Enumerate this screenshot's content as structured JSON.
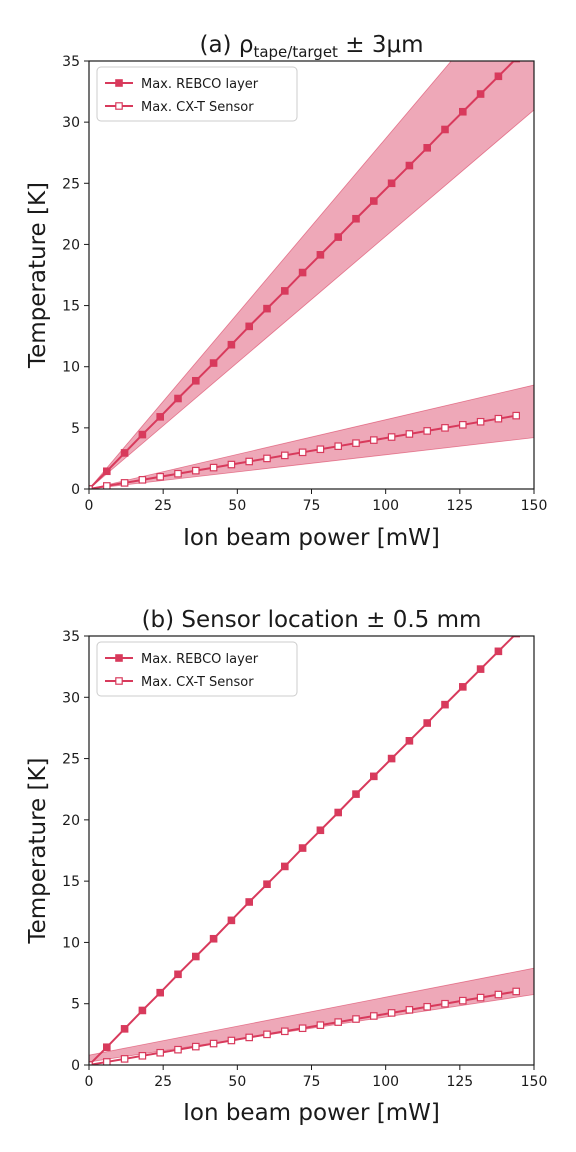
{
  "colors": {
    "series": "#d83a5c",
    "band": "#e0607e",
    "band_opacity": 0.55,
    "axis": "#1a1a1a",
    "background": "#ffffff"
  },
  "chart_data": [
    {
      "type": "line",
      "title_prefix": "(a) ",
      "title_rho": "ρ",
      "title_sub": "tape/target",
      "title_suffix": " ± 3μm",
      "xlabel": "Ion beam power [mW]",
      "ylabel": "Temperature [K]",
      "xlim": [
        0,
        150
      ],
      "ylim": [
        0,
        35
      ],
      "xticks": [
        0,
        25,
        50,
        75,
        100,
        125,
        150
      ],
      "yticks": [
        0,
        5,
        10,
        15,
        20,
        25,
        30,
        35
      ],
      "grid": false,
      "legend_position": "top-left",
      "series": [
        {
          "name": "Max. REBCO layer",
          "marker": "filled-square",
          "x": [
            0,
            6,
            12,
            18,
            24,
            30,
            36,
            42,
            48,
            54,
            60,
            66,
            72,
            78,
            84,
            90,
            96,
            102,
            108,
            114,
            120,
            126,
            132,
            138,
            144
          ],
          "y": [
            0.0,
            1.45,
            2.95,
            4.45,
            5.9,
            7.4,
            8.85,
            10.3,
            11.8,
            13.3,
            14.75,
            16.2,
            17.7,
            19.15,
            20.6,
            22.1,
            23.55,
            25.0,
            26.45,
            27.9,
            29.4,
            30.85,
            32.3,
            33.75,
            35.2
          ],
          "band_x": [
            0,
            150
          ],
          "band_lower": [
            0,
            31.0
          ],
          "band_upper": [
            0,
            43.0
          ]
        },
        {
          "name": "Max. CX-T Sensor",
          "marker": "open-square",
          "x": [
            0,
            6,
            12,
            18,
            24,
            30,
            36,
            42,
            48,
            54,
            60,
            66,
            72,
            78,
            84,
            90,
            96,
            102,
            108,
            114,
            120,
            126,
            132,
            138,
            144
          ],
          "y": [
            0.0,
            0.25,
            0.5,
            0.75,
            1.0,
            1.25,
            1.5,
            1.75,
            2.0,
            2.25,
            2.5,
            2.75,
            3.0,
            3.25,
            3.5,
            3.75,
            4.0,
            4.25,
            4.5,
            4.75,
            5.0,
            5.25,
            5.5,
            5.75,
            6.0
          ],
          "band_x": [
            0,
            150
          ],
          "band_lower": [
            0,
            4.2
          ],
          "band_upper": [
            0,
            8.5
          ]
        }
      ]
    },
    {
      "type": "line",
      "title_prefix": "(b) Sensor location ± 0.5 mm",
      "title_rho": "",
      "title_sub": "",
      "title_suffix": "",
      "xlabel": "Ion beam power [mW]",
      "ylabel": "Temperature [K]",
      "xlim": [
        0,
        150
      ],
      "ylim": [
        0,
        35
      ],
      "xticks": [
        0,
        25,
        50,
        75,
        100,
        125,
        150
      ],
      "yticks": [
        0,
        5,
        10,
        15,
        20,
        25,
        30,
        35
      ],
      "grid": false,
      "legend_position": "top-left",
      "series": [
        {
          "name": "Max. REBCO layer",
          "marker": "filled-square",
          "x": [
            0,
            6,
            12,
            18,
            24,
            30,
            36,
            42,
            48,
            54,
            60,
            66,
            72,
            78,
            84,
            90,
            96,
            102,
            108,
            114,
            120,
            126,
            132,
            138,
            144
          ],
          "y": [
            0.0,
            1.45,
            2.95,
            4.45,
            5.9,
            7.4,
            8.85,
            10.3,
            11.8,
            13.3,
            14.75,
            16.2,
            17.7,
            19.15,
            20.6,
            22.1,
            23.55,
            25.0,
            26.45,
            27.9,
            29.4,
            30.85,
            32.3,
            33.75,
            35.2
          ],
          "band_x": [],
          "band_lower": [],
          "band_upper": []
        },
        {
          "name": "Max. CX-T Sensor",
          "marker": "open-square",
          "x": [
            0,
            6,
            12,
            18,
            24,
            30,
            36,
            42,
            48,
            54,
            60,
            66,
            72,
            78,
            84,
            90,
            96,
            102,
            108,
            114,
            120,
            126,
            132,
            138,
            144
          ],
          "y": [
            0.0,
            0.25,
            0.5,
            0.75,
            1.0,
            1.25,
            1.5,
            1.75,
            2.0,
            2.25,
            2.5,
            2.75,
            3.0,
            3.25,
            3.5,
            3.75,
            4.0,
            4.25,
            4.5,
            4.75,
            5.0,
            5.25,
            5.5,
            5.75,
            6.0
          ],
          "band_x": [
            0,
            150
          ],
          "band_lower": [
            0.25,
            5.75
          ],
          "band_upper": [
            0.8,
            7.9
          ]
        }
      ]
    }
  ]
}
